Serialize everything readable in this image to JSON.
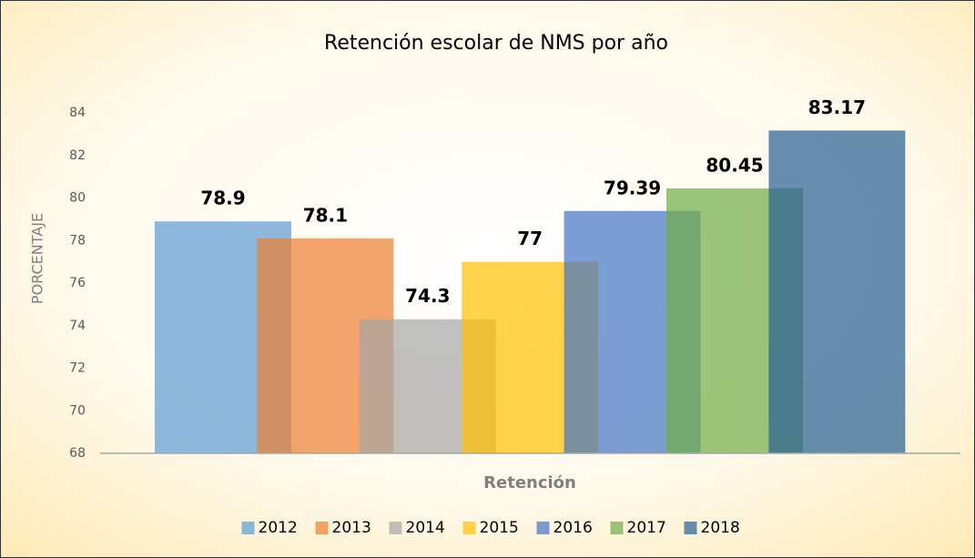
{
  "chart_data": {
    "type": "bar",
    "title": "Retención escolar de NMS por año",
    "categories": [
      "Retención"
    ],
    "x_label": "Retención",
    "y_label": "PORCENTAJE",
    "series": [
      {
        "name": "2012",
        "color": "#5b9bd5",
        "values": [
          78.9
        ]
      },
      {
        "name": "2013",
        "color": "#ed7d31",
        "values": [
          78.1
        ]
      },
      {
        "name": "2014",
        "color": "#a5a5a5",
        "values": [
          74.3
        ]
      },
      {
        "name": "2015",
        "color": "#ffc000",
        "values": [
          77
        ]
      },
      {
        "name": "2016",
        "color": "#4472c4",
        "values": [
          79.39
        ]
      },
      {
        "name": "2017",
        "color": "#70ad47",
        "values": [
          80.45
        ]
      },
      {
        "name": "2018",
        "color": "#255e91",
        "values": [
          83.17
        ]
      }
    ],
    "ylim": [
      68,
      84
    ],
    "yticks": [
      68,
      70,
      72,
      74,
      76,
      78,
      80,
      82,
      84
    ],
    "grid": false,
    "legend": "bottom"
  }
}
